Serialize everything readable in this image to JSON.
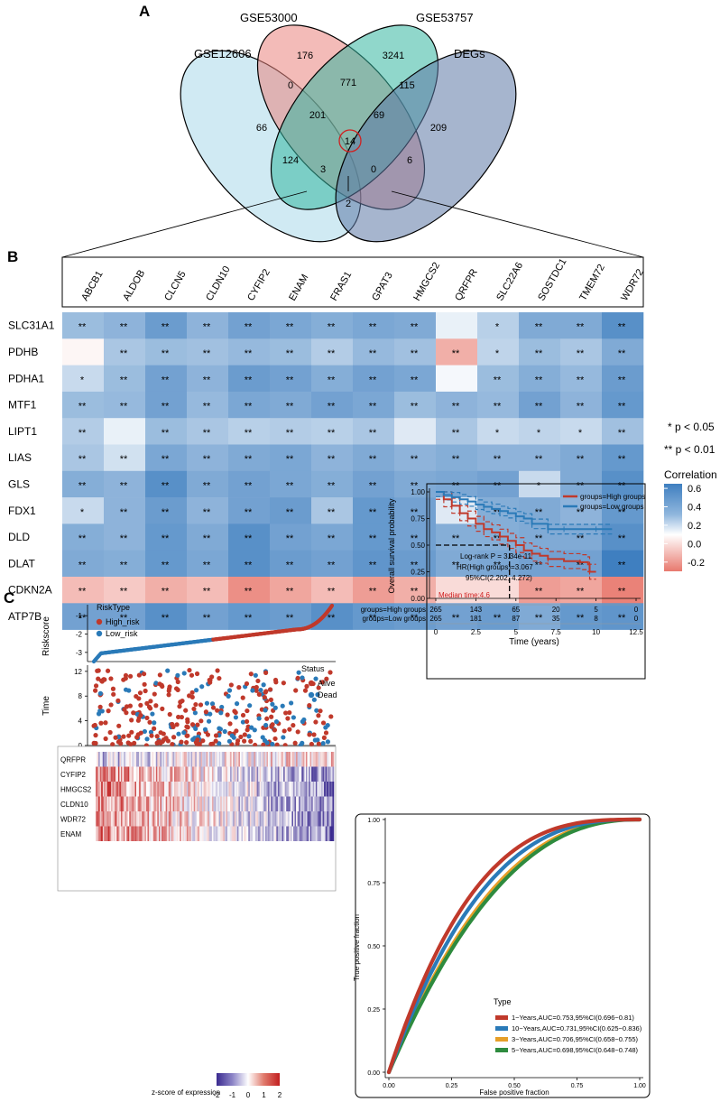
{
  "chart_data": [
    {
      "panel": "A",
      "type": "venn",
      "sets": [
        "GSE12606",
        "GSE53000",
        "GSE53757",
        "DEGs"
      ],
      "regions": [
        {
          "id": "GSE12606_only",
          "value": "66"
        },
        {
          "id": "GSE53000_only",
          "value": "176"
        },
        {
          "id": "GSE53757_only",
          "value": "3241"
        },
        {
          "id": "DEGs_only",
          "value": "209"
        },
        {
          "id": "GSE53000_GSE53757",
          "value": "771"
        },
        {
          "id": "GSE12606_GSE53000",
          "value": "0"
        },
        {
          "id": "GSE53757_DEGs",
          "value": "115"
        },
        {
          "id": "GSE12606_GSE53000_GSE53757",
          "value": "201"
        },
        {
          "id": "GSE53000_GSE53757_DEGs",
          "value": "69"
        },
        {
          "id": "all_four",
          "value": "14"
        },
        {
          "id": "GSE12606_GSE53757",
          "value": "124"
        },
        {
          "id": "GSE53000_DEGs",
          "value": "6"
        },
        {
          "id": "GSE12606_GSE53757_DEGs",
          "value": "3"
        },
        {
          "id": "GSE12606_GSE53000_DEGs",
          "value": "0"
        },
        {
          "id": "GSE12606_DEGs",
          "value": "2"
        }
      ]
    },
    {
      "panel": "B",
      "type": "heatmap",
      "columns": [
        "ABCB1",
        "ALDOB",
        "CLCN5",
        "CLDN10",
        "CYFIP2",
        "ENAM",
        "FRAS1",
        "GPAT3",
        "HMGCS2",
        "QRFPR",
        "SLC22A6",
        "SOSTDC1",
        "TMEM72",
        "WDR72"
      ],
      "rows": [
        "SLC31A1",
        "PDHB",
        "PDHA1",
        "MTF1",
        "LIPT1",
        "LIAS",
        "GLS",
        "FDX1",
        "DLD",
        "DLAT",
        "CDKN2A",
        "ATP7B"
      ],
      "values": [
        [
          0.3,
          0.35,
          0.48,
          0.35,
          0.45,
          0.42,
          0.38,
          0.42,
          0.4,
          0.05,
          0.2,
          0.4,
          0.4,
          0.55
        ],
        [
          -0.02,
          0.25,
          0.3,
          0.28,
          0.32,
          0.3,
          0.22,
          0.32,
          0.28,
          -0.18,
          0.18,
          0.3,
          0.25,
          0.4
        ],
        [
          0.15,
          0.3,
          0.45,
          0.35,
          0.48,
          0.45,
          0.38,
          0.45,
          0.42,
          0.02,
          0.3,
          0.38,
          0.32,
          0.48
        ],
        [
          0.3,
          0.32,
          0.45,
          0.32,
          0.42,
          0.4,
          0.45,
          0.42,
          0.3,
          0.35,
          0.32,
          0.45,
          0.35,
          0.5
        ],
        [
          0.22,
          0.05,
          0.3,
          0.25,
          0.2,
          0.22,
          0.2,
          0.25,
          0.08,
          0.25,
          0.15,
          0.18,
          0.15,
          0.28
        ],
        [
          0.25,
          0.12,
          0.42,
          0.35,
          0.4,
          0.42,
          0.35,
          0.4,
          0.35,
          0.38,
          0.35,
          0.35,
          0.4,
          0.5
        ],
        [
          0.38,
          0.35,
          0.55,
          0.4,
          0.45,
          0.42,
          0.38,
          0.45,
          0.4,
          0.42,
          0.45,
          0.15,
          0.4,
          0.55
        ],
        [
          0.15,
          0.35,
          0.48,
          0.35,
          0.45,
          0.48,
          0.25,
          0.5,
          0.45,
          0.08,
          0.38,
          0.4,
          0.35,
          0.5
        ],
        [
          0.38,
          0.35,
          0.5,
          0.4,
          0.55,
          0.45,
          0.42,
          0.5,
          0.45,
          0.38,
          0.38,
          0.4,
          0.4,
          0.55
        ],
        [
          0.4,
          0.38,
          0.5,
          0.42,
          0.55,
          0.48,
          0.45,
          0.52,
          0.48,
          0.4,
          0.42,
          0.45,
          0.45,
          0.65
        ],
        [
          -0.15,
          -0.12,
          -0.18,
          -0.15,
          -0.25,
          -0.2,
          -0.15,
          -0.22,
          -0.18,
          -0.08,
          -0.08,
          -0.22,
          -0.2,
          -0.28
        ],
        [
          0.45,
          0.45,
          0.55,
          0.45,
          0.5,
          0.48,
          0.55,
          0.5,
          0.48,
          0.45,
          0.48,
          0.4,
          0.5,
          0.52
        ]
      ],
      "significance": [
        [
          "**",
          "**",
          "**",
          "**",
          "**",
          "**",
          "**",
          "**",
          "**",
          "",
          "*",
          "**",
          "**",
          "**"
        ],
        [
          "",
          "**",
          "**",
          "**",
          "**",
          "**",
          "**",
          "**",
          "**",
          "**",
          "*",
          "**",
          "**",
          "**"
        ],
        [
          "*",
          "**",
          "**",
          "**",
          "**",
          "**",
          "**",
          "**",
          "**",
          "",
          "**",
          "**",
          "**",
          "**"
        ],
        [
          "**",
          "**",
          "**",
          "**",
          "**",
          "**",
          "**",
          "**",
          "**",
          "**",
          "**",
          "**",
          "**",
          "**"
        ],
        [
          "**",
          "",
          "**",
          "**",
          "**",
          "**",
          "**",
          "**",
          "",
          "**",
          "*",
          "*",
          "*",
          "**"
        ],
        [
          "**",
          "**",
          "**",
          "**",
          "**",
          "**",
          "**",
          "**",
          "**",
          "**",
          "**",
          "**",
          "**",
          "**"
        ],
        [
          "**",
          "**",
          "**",
          "**",
          "**",
          "**",
          "**",
          "**",
          "**",
          "**",
          "**",
          "*",
          "**",
          "**"
        ],
        [
          "*",
          "**",
          "**",
          "**",
          "**",
          "**",
          "**",
          "**",
          "**",
          "",
          "**",
          "**",
          "**",
          "**"
        ],
        [
          "**",
          "**",
          "**",
          "**",
          "**",
          "**",
          "**",
          "**",
          "**",
          "**",
          "**",
          "**",
          "**",
          "**"
        ],
        [
          "**",
          "**",
          "**",
          "**",
          "**",
          "**",
          "**",
          "**",
          "**",
          "**",
          "**",
          "**",
          "**",
          "**"
        ],
        [
          "**",
          "**",
          "**",
          "**",
          "**",
          "**",
          "**",
          "**",
          "**",
          "",
          "",
          "**",
          "**",
          "**"
        ],
        [
          "**",
          "**",
          "**",
          "**",
          "**",
          "**",
          "**",
          "**",
          "**",
          "**",
          "**",
          "**",
          "**",
          "**"
        ]
      ],
      "legend_title": "Correlation",
      "legend_ticks": [
        "0.6",
        "0.4",
        "0.2",
        "0.0",
        "-0.2"
      ],
      "legend_tick_values": [
        0.6,
        0.4,
        0.2,
        0.0,
        -0.2
      ],
      "sig_notes": [
        "* p < 0.05",
        "** p < 0.01"
      ]
    },
    {
      "panel": "C-riskscore",
      "type": "scatter",
      "ylabel": "Riskscore",
      "yticks": [
        "-1",
        "-2",
        "-3"
      ],
      "ytick_values": [
        -1,
        -2,
        -3
      ],
      "ylim": [
        -3.5,
        -0.4
      ],
      "n": 530,
      "legend_title": "RiskType",
      "legend": [
        {
          "name": "High_risk",
          "color": "#c0392b"
        },
        {
          "name": "Low_risk",
          "color": "#2a7ab8"
        }
      ]
    },
    {
      "panel": "C-status",
      "type": "scatter",
      "ylabel": "Time",
      "yticks": [
        "12",
        "8",
        "4",
        "0"
      ],
      "ytick_values": [
        12,
        8,
        4,
        0
      ],
      "ylim": [
        0,
        13
      ],
      "legend_title": "Status",
      "legend": [
        {
          "name": "Alive",
          "color": "#c0392b"
        },
        {
          "name": "Dead",
          "color": "#2a7ab8"
        }
      ]
    },
    {
      "panel": "C-expression",
      "type": "heatmap",
      "genes": [
        "QRFPR",
        "CYFIP2",
        "HMGCS2",
        "CLDN10",
        "WDR72",
        "ENAM"
      ],
      "colorbar_label": "z-score of expression",
      "colorbar_ticks": [
        "-2",
        "-1",
        "0",
        "1",
        "2"
      ],
      "colorbar_tick_values": [
        -2,
        -1,
        0,
        1,
        2
      ]
    },
    {
      "panel": "C-KM",
      "type": "line",
      "ylabel": "Overall survival probability",
      "xlabel": "Time (years)",
      "xticks": [
        "0",
        "2.5",
        "5",
        "7.5",
        "10",
        "12.5"
      ],
      "xtick_values": [
        0,
        2.5,
        5,
        7.5,
        10,
        12.5
      ],
      "yticks": [
        "1.00",
        "0.75",
        "0.50",
        "0.25",
        "0.00"
      ],
      "ytick_values": [
        1.0,
        0.75,
        0.5,
        0.25,
        0.0
      ],
      "xlim": [
        0,
        12.5
      ],
      "ylim": [
        0,
        1
      ],
      "series": [
        {
          "name": "groups=High groups",
          "color": "#c0392b",
          "x": [
            0,
            0.5,
            1,
            1.5,
            2,
            2.5,
            3,
            3.5,
            4,
            4.5,
            5,
            5.5,
            6,
            6.5,
            7,
            8,
            9,
            9.5,
            9.6,
            10
          ],
          "y": [
            1.0,
            0.93,
            0.87,
            0.8,
            0.75,
            0.7,
            0.65,
            0.62,
            0.58,
            0.54,
            0.5,
            0.45,
            0.42,
            0.4,
            0.37,
            0.35,
            0.34,
            0.32,
            0.25,
            0.25
          ]
        },
        {
          "name": "groups=Low groups",
          "color": "#2a7ab8",
          "x": [
            0,
            0.5,
            1,
            1.5,
            2,
            2.5,
            3,
            3.5,
            4,
            4.5,
            5,
            5.5,
            6,
            7,
            8,
            9,
            10,
            11
          ],
          "y": [
            1.0,
            0.97,
            0.95,
            0.93,
            0.91,
            0.88,
            0.86,
            0.84,
            0.82,
            0.8,
            0.77,
            0.75,
            0.7,
            0.65,
            0.65,
            0.65,
            0.65,
            0.65
          ]
        }
      ],
      "median_time": "Median time:4.6",
      "median_value": 4.6,
      "annotations": [
        "Log-rank P = 3.34e-11",
        "HR(High groups)=3.067",
        "95%CI(2.202, 4.272)"
      ],
      "risk_table": {
        "rows": [
          "groups=High groups",
          "groups=Low groups"
        ],
        "values": [
          [
            "265",
            "143",
            "65",
            "20",
            "5",
            "0"
          ],
          [
            "265",
            "181",
            "87",
            "35",
            "8",
            "0"
          ]
        ]
      }
    },
    {
      "panel": "C-ROC",
      "type": "line",
      "xlabel": "False positive fraction",
      "ylabel": "True positive fraction",
      "xticks": [
        "0.00",
        "0.25",
        "0.50",
        "0.75",
        "1.00"
      ],
      "xtick_values": [
        0,
        0.25,
        0.5,
        0.75,
        1.0
      ],
      "yticks": [
        "1.00",
        "0.75",
        "0.50",
        "0.25",
        "0.00"
      ],
      "ytick_values": [
        1.0,
        0.75,
        0.5,
        0.25,
        0.0
      ],
      "legend_title": "Type",
      "series": [
        {
          "name": "1−Years,AUC=0.753,95%CI(0.696−0.81)",
          "color": "#c0392b",
          "auc": 0.753
        },
        {
          "name": "10−Years,AUC=0.731,95%CI(0.625−0.836)",
          "color": "#2a7ab8",
          "auc": 0.731
        },
        {
          "name": "3−Years,AUC=0.706,95%CI(0.658−0.755)",
          "color": "#e69f28",
          "auc": 0.706
        },
        {
          "name": "5−Years,AUC=0.698,95%CI(0.648−0.748)",
          "color": "#2e8b3e",
          "auc": 0.698
        }
      ]
    }
  ],
  "panel_labels": {
    "a": "A",
    "b": "B",
    "c": "C"
  }
}
